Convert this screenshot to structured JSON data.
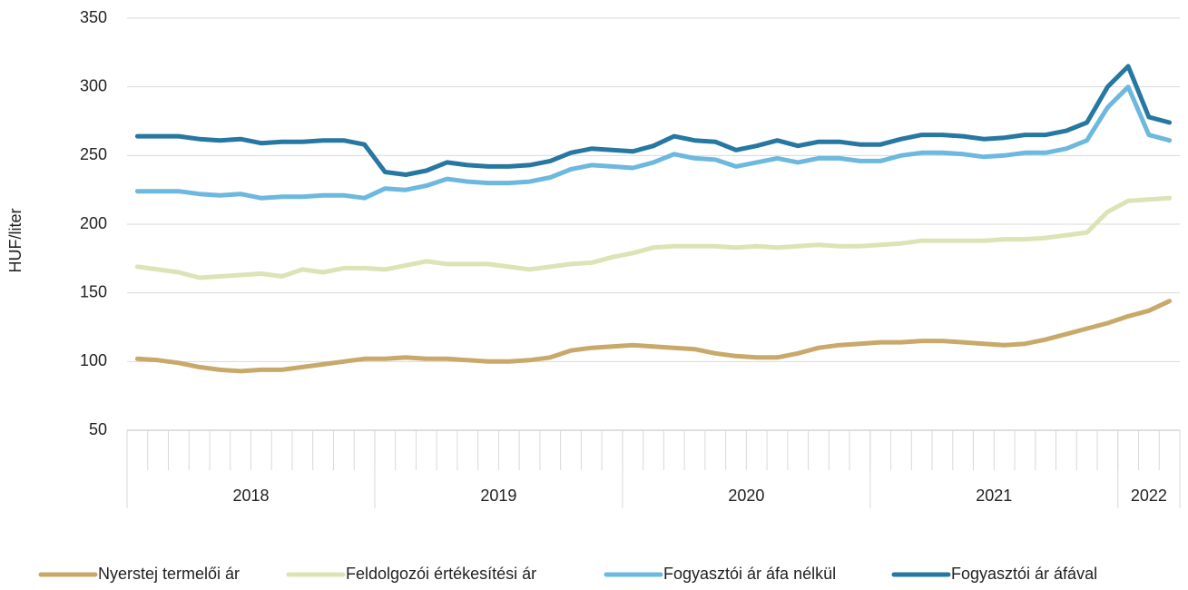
{
  "chart_data": {
    "type": "line",
    "y_label": "HUF/liter",
    "categories": [
      null,
      null,
      null,
      null,
      null,
      null,
      null,
      null,
      null,
      null,
      null,
      null,
      null,
      null,
      null,
      null,
      null,
      null,
      null,
      null,
      null,
      null,
      null,
      null,
      null,
      null,
      null,
      null,
      null,
      null,
      null,
      null,
      null,
      null,
      null,
      null,
      null,
      null,
      null,
      null,
      null,
      null,
      null,
      null,
      null,
      null,
      null,
      null,
      null,
      null,
      null
    ],
    "x_groups": [
      {
        "label": "2018",
        "span": 12
      },
      {
        "label": "2019",
        "span": 12
      },
      {
        "label": "2020",
        "span": 12
      },
      {
        "label": "2021",
        "span": 12
      },
      {
        "label": "2022",
        "span": 3
      }
    ],
    "ylim": [
      50,
      350
    ],
    "yticks": [
      50,
      100,
      150,
      200,
      250,
      300,
      350
    ],
    "grid": true,
    "legend": "bottom",
    "series": [
      {
        "name": "Nyerstej termelői ár",
        "color": "#c8a96a",
        "values": [
          102,
          101,
          99,
          96,
          94,
          93,
          94,
          94,
          96,
          98,
          100,
          102,
          102,
          103,
          102,
          102,
          101,
          100,
          100,
          101,
          103,
          108,
          110,
          111,
          112,
          111,
          110,
          109,
          106,
          104,
          103,
          103,
          106,
          110,
          112,
          113,
          114,
          114,
          115,
          115,
          114,
          113,
          112,
          113,
          116,
          120,
          124,
          128,
          133,
          137,
          144
        ]
      },
      {
        "name": "Feldolgozói értékesítési ár",
        "color": "#dde3b5",
        "values": [
          169,
          167,
          165,
          161,
          162,
          163,
          164,
          162,
          167,
          165,
          168,
          168,
          167,
          170,
          173,
          171,
          171,
          171,
          169,
          167,
          169,
          171,
          172,
          176,
          179,
          183,
          184,
          184,
          184,
          183,
          184,
          183,
          184,
          185,
          184,
          184,
          185,
          186,
          188,
          188,
          188,
          188,
          189,
          189,
          190,
          192,
          194,
          209,
          217,
          218,
          219
        ]
      },
      {
        "name": "Fogyasztói ár áfa nélkül",
        "color": "#6db8de",
        "values": [
          224,
          224,
          224,
          222,
          221,
          222,
          219,
          220,
          220,
          221,
          221,
          219,
          226,
          225,
          228,
          233,
          231,
          230,
          230,
          231,
          234,
          240,
          243,
          242,
          241,
          245,
          251,
          248,
          247,
          242,
          245,
          248,
          245,
          248,
          248,
          246,
          246,
          250,
          252,
          252,
          251,
          249,
          250,
          252,
          252,
          255,
          261,
          285,
          300,
          265,
          261
        ]
      },
      {
        "name": "Fogyasztói ár áfával",
        "color": "#2677a1",
        "values": [
          264,
          264,
          264,
          262,
          261,
          262,
          259,
          260,
          260,
          261,
          261,
          258,
          238,
          236,
          239,
          245,
          243,
          242,
          242,
          243,
          246,
          252,
          255,
          254,
          253,
          257,
          264,
          261,
          260,
          254,
          257,
          261,
          257,
          260,
          260,
          258,
          258,
          262,
          265,
          265,
          264,
          262,
          263,
          265,
          265,
          268,
          274,
          300,
          315,
          278,
          274
        ]
      }
    ]
  }
}
